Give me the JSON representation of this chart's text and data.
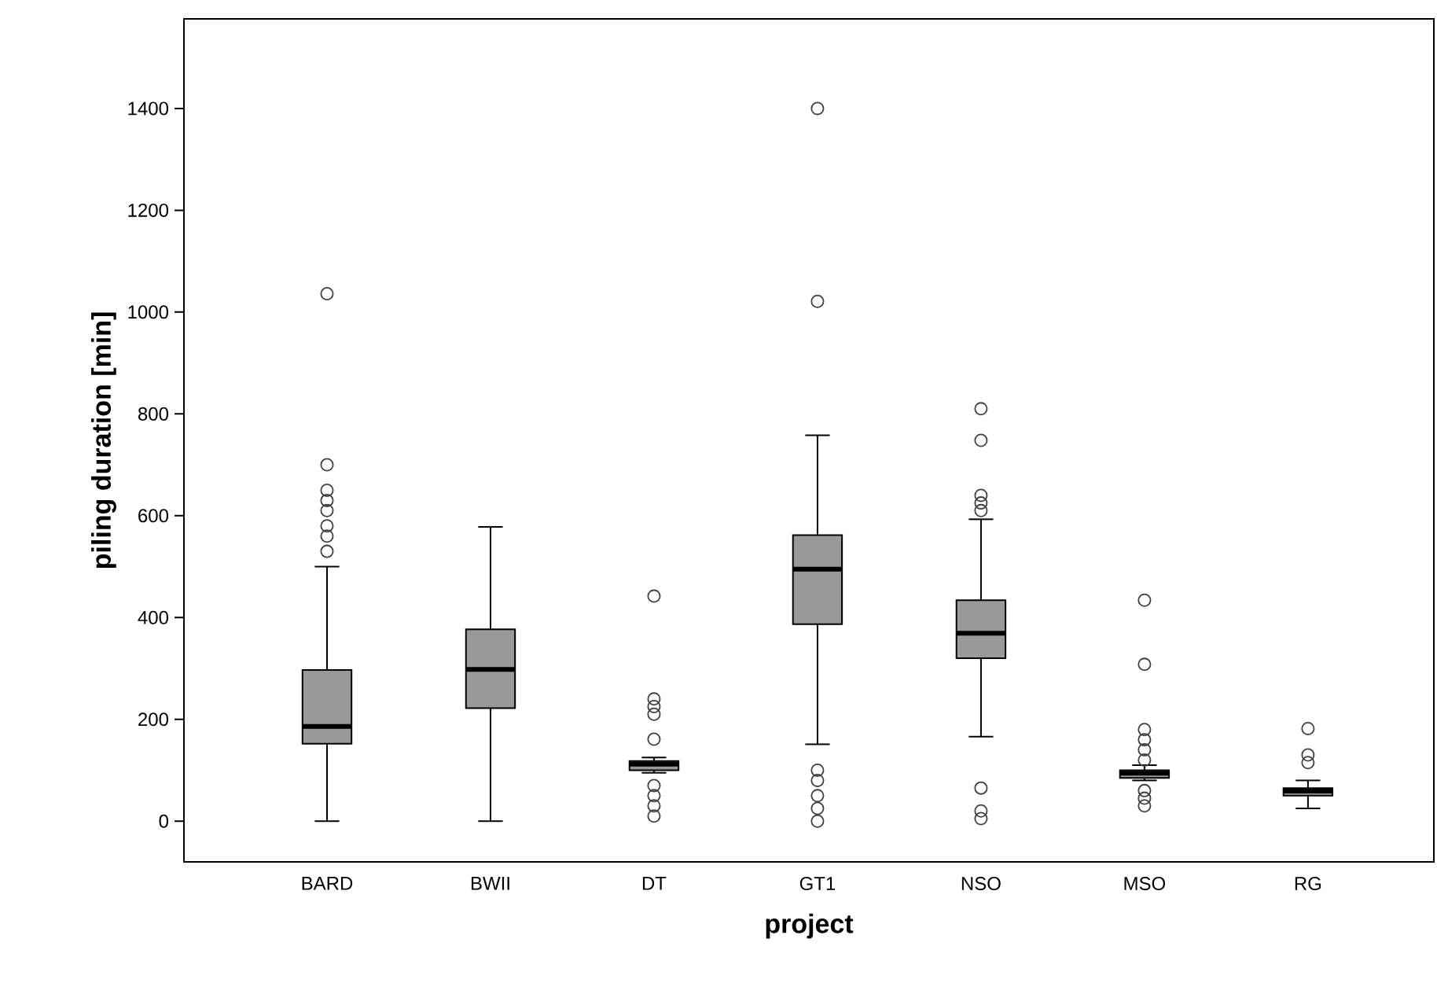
{
  "chart_data": {
    "type": "box",
    "xlabel": "project",
    "ylabel": "piling duration [min]",
    "categories": [
      "BARD",
      "BWII",
      "DT",
      "GT1",
      "NSO",
      "MSO",
      "RG"
    ],
    "color": "#999999",
    "boxes": [
      {
        "low": 0,
        "q1": 152,
        "median": 186,
        "q3": 297,
        "high": 500,
        "outliers": [
          1036,
          700,
          650,
          630,
          610,
          580,
          560,
          530
        ]
      },
      {
        "low": 0,
        "q1": 222,
        "median": 298,
        "q3": 377,
        "high": 578
      },
      {
        "low": 95,
        "q1": 100,
        "median": 112,
        "q3": 118,
        "high": 125,
        "outliers": [
          442,
          240,
          225,
          210,
          161,
          70,
          50,
          30,
          10
        ]
      },
      {
        "low": 151,
        "q1": 387,
        "median": 495,
        "q3": 562,
        "high": 758,
        "outliers": [
          1400,
          1021,
          100,
          80,
          50,
          25,
          0
        ]
      },
      {
        "low": 166,
        "q1": 320,
        "median": 369,
        "q3": 434,
        "high": 593,
        "outliers": [
          810,
          748,
          640,
          625,
          610,
          65,
          20,
          5
        ]
      },
      {
        "low": 80,
        "q1": 85,
        "median": 94,
        "q3": 100,
        "high": 110,
        "outliers": [
          434,
          308,
          180,
          160,
          140,
          120,
          60,
          45,
          30
        ]
      },
      {
        "low": 25,
        "q1": 50,
        "median": 59,
        "q3": 65,
        "high": 80,
        "outliers": [
          182,
          130,
          115
        ]
      }
    ],
    "ylim": [
      -80,
      1576
    ],
    "yticks": [
      0,
      200,
      400,
      600,
      800,
      1000,
      1200,
      1400
    ]
  }
}
